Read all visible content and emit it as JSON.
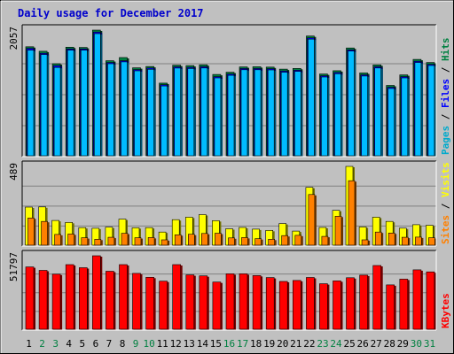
{
  "chart_data": {
    "type": "bar",
    "title": "Daily usage for December 2017",
    "categories": [
      "1",
      "2",
      "3",
      "4",
      "5",
      "6",
      "7",
      "8",
      "9",
      "10",
      "11",
      "12",
      "13",
      "14",
      "15",
      "16",
      "17",
      "18",
      "19",
      "20",
      "21",
      "22",
      "23",
      "24",
      "25",
      "26",
      "27",
      "28",
      "29",
      "30",
      "31"
    ],
    "weekend_days": [
      "2",
      "3",
      "9",
      "10",
      "16",
      "17",
      "23",
      "24",
      "30",
      "31"
    ],
    "panels": [
      {
        "ymax_label": "2057",
        "ymax": 2057,
        "right_labels": [
          {
            "text": "Pages",
            "color": "#00aacc"
          },
          {
            "text": " / ",
            "color": "#000000"
          },
          {
            "text": "Files",
            "color": "#0000ff"
          },
          {
            "text": " / ",
            "color": "#000000"
          },
          {
            "text": "Hits",
            "color": "#008040"
          }
        ],
        "series": [
          {
            "name": "Hits",
            "color": "#008040",
            "values": [
              1787,
              1713,
              1510,
              1780,
              1775,
              2057,
              1560,
              1611,
              1444,
              1466,
              1195,
              1487,
              1480,
              1493,
              1336,
              1372,
              1459,
              1461,
              1456,
              1423,
              1434,
              1960,
              1344,
              1397,
              1766,
              1361,
              1492,
              1158,
              1329,
              1581,
              1531
            ]
          },
          {
            "name": "Files",
            "color": "#0000ff",
            "values": [
              1760,
              1680,
              1480,
              1750,
              1750,
              2025,
              1530,
              1560,
              1415,
              1440,
              1170,
              1460,
              1452,
              1462,
              1300,
              1342,
              1432,
              1432,
              1430,
              1393,
              1405,
              1930,
              1315,
              1368,
              1736,
              1331,
              1462,
              1128,
              1300,
              1551,
              1501
            ]
          },
          {
            "name": "Pages",
            "color": "#00bbff",
            "values": [
              1730,
              1660,
              1450,
              1730,
              1730,
              2000,
              1510,
              1540,
              1395,
              1420,
              1150,
              1440,
              1432,
              1442,
              1280,
              1322,
              1412,
              1412,
              1410,
              1373,
              1385,
              1910,
              1295,
              1348,
              1716,
              1311,
              1442,
              1108,
              1280,
              1531,
              1481
            ]
          }
        ]
      },
      {
        "ymax_label": "489",
        "ymax": 489,
        "right_labels": [
          {
            "text": "Sites",
            "color": "#ff8000"
          },
          {
            "text": " / ",
            "color": "#000000"
          },
          {
            "text": "Visits",
            "color": "#ffff00"
          }
        ],
        "series": [
          {
            "name": "Visits",
            "color": "#ffff00",
            "values": [
              239,
              240,
              157,
              145,
              113,
              109,
              116,
              165,
              112,
              113,
              86,
              162,
              177,
              193,
              156,
              106,
              114,
              104,
              96,
              138,
              92,
              360,
              114,
              219,
              489,
              117,
              177,
              151,
              110,
              131,
              127
            ]
          },
          {
            "name": "Sites",
            "color": "#ff8000",
            "values": [
              172,
              151,
              71,
              74,
              51,
              42,
              54,
              78,
              51,
              52,
              38,
              69,
              72,
              77,
              79,
              50,
              52,
              45,
              42,
              64,
              66,
              316,
              59,
              183,
              401,
              38,
              86,
              80,
              54,
              55,
              51
            ]
          }
        ]
      },
      {
        "ymax_label": "51797",
        "ymax": 51797,
        "right_labels": [
          {
            "text": "KBytes",
            "color": "#ff0000"
          }
        ],
        "series": [
          {
            "name": "KBytes",
            "color": "#ff0000",
            "values": [
              44000,
              41600,
              39000,
              45600,
              43500,
              51797,
              41000,
              45600,
              39500,
              36800,
              34100,
              45600,
              38500,
              37800,
              33500,
              39200,
              39200,
              38000,
              36600,
              33900,
              34600,
              36700,
              32300,
              34300,
              36500,
              38300,
              45000,
              31500,
              35500,
              42000,
              40600
            ]
          }
        ]
      }
    ]
  }
}
